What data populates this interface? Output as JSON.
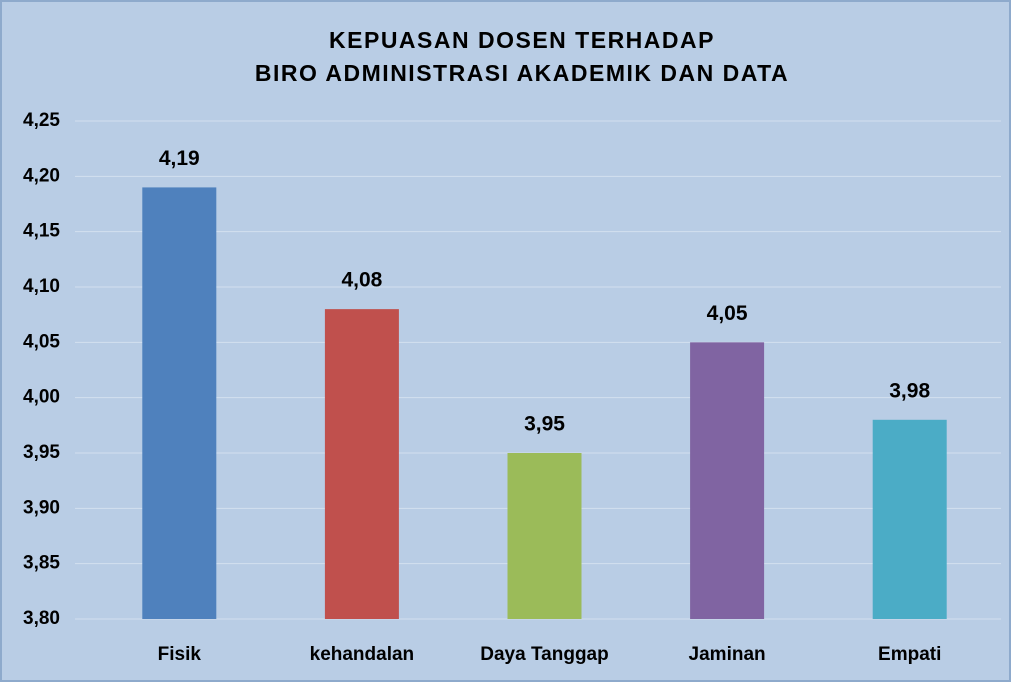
{
  "chart_data": {
    "type": "bar",
    "title": [
      "KEPUASAN DOSEN TERHADAP",
      "BIRO ADMINISTRASI AKADEMIK DAN DATA"
    ],
    "categories": [
      "Fisik",
      "kehandalan",
      "Daya Tanggap",
      "Jaminan",
      "Empati"
    ],
    "values": [
      4.19,
      4.08,
      3.95,
      4.05,
      3.98
    ],
    "value_labels": [
      "4,19",
      "4,08",
      "3,95",
      "4,05",
      "3,98"
    ],
    "colors": [
      "#4f81bd",
      "#c0504d",
      "#9bbb59",
      "#8064a2",
      "#4bacc6"
    ],
    "ylim": [
      3.8,
      4.25
    ],
    "yticks": [
      {
        "value": 3.8,
        "label": "3,80"
      },
      {
        "value": 3.85,
        "label": "3,85"
      },
      {
        "value": 3.9,
        "label": "3,90"
      },
      {
        "value": 3.95,
        "label": "3,95"
      },
      {
        "value": 4.0,
        "label": "4,00"
      },
      {
        "value": 4.05,
        "label": "4,05"
      },
      {
        "value": 4.1,
        "label": "4,10"
      },
      {
        "value": 4.15,
        "label": "4,15"
      },
      {
        "value": 4.2,
        "label": "4,20"
      },
      {
        "value": 4.25,
        "label": "4,25"
      }
    ],
    "grid": true
  }
}
